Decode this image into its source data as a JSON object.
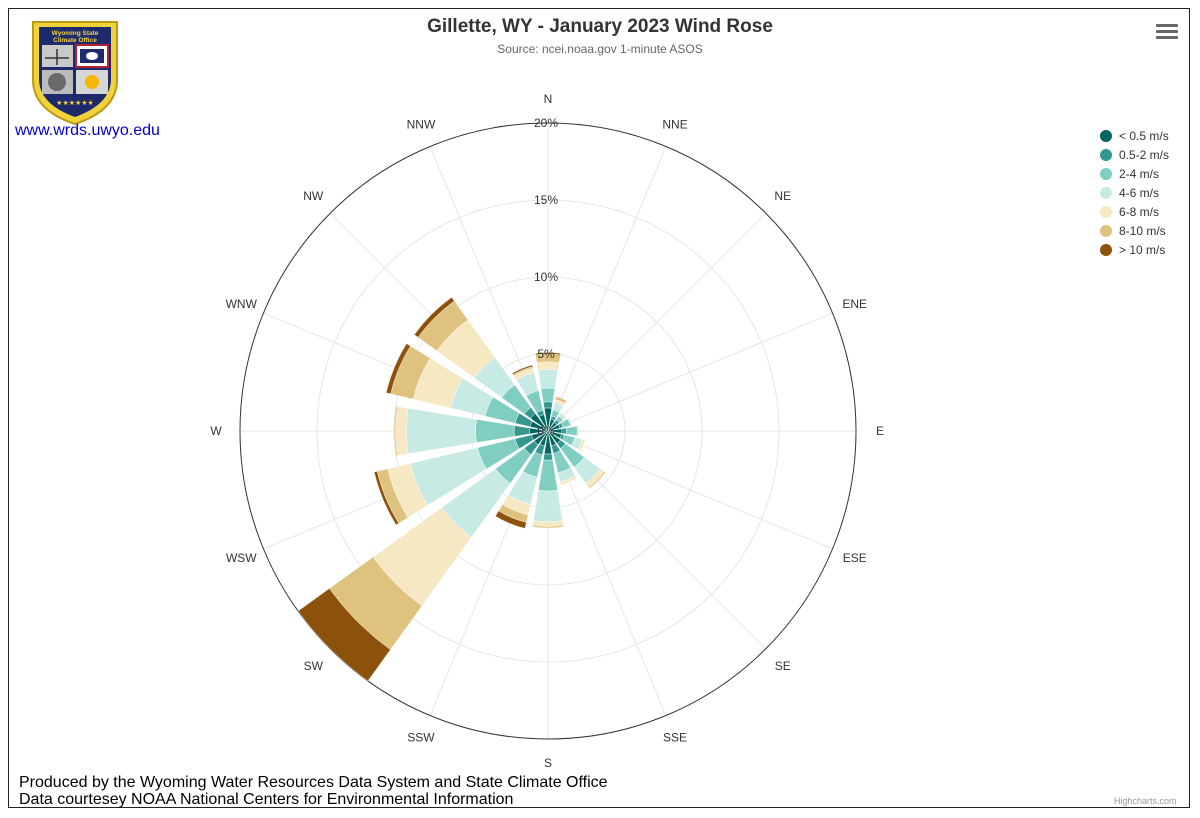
{
  "title": "Gillette, WY - January 2023 Wind Rose",
  "subtitle": "Source: ncei.noaa.gov 1-minute ASOS",
  "logo": {
    "top_text_1": "Wyoming State",
    "top_text_2": "Climate Office",
    "link_text": "www.wrds.uwyo.edu"
  },
  "credits": {
    "line1": "Produced by the Wyoming Water Resources Data System and State Climate Office",
    "line2": "Data courtesey NOAA National Centers for Environmental Information",
    "highcharts": "Highcharts.com"
  },
  "chart_data": {
    "type": "windrose",
    "stacking": "stacked",
    "categories": [
      "N",
      "NNE",
      "NE",
      "ENE",
      "E",
      "ESE",
      "SE",
      "SSE",
      "S",
      "SSW",
      "SW",
      "WSW",
      "W",
      "WNW",
      "NW",
      "NNW"
    ],
    "radial_axis": {
      "min": 0,
      "max": 20,
      "tick_labels": [
        "0%",
        "5%",
        "10%",
        "15%",
        "20%"
      ]
    },
    "legend_position": "right",
    "series": [
      {
        "name": "< 0.5 m/s",
        "color": "#01665e",
        "values": [
          1.5,
          0.8,
          0.7,
          0.8,
          0.9,
          0.9,
          1.0,
          1.0,
          1.5,
          1.0,
          1.1,
          1.1,
          1.2,
          1.2,
          1.4,
          1.1
        ]
      },
      {
        "name": "0.5-2 m/s",
        "color": "#35978f",
        "values": [
          0.4,
          0.2,
          0.2,
          0.2,
          0.3,
          0.2,
          0.4,
          0.5,
          0.4,
          0.6,
          0.8,
          1.1,
          1.0,
          1.0,
          0.5,
          0.3
        ]
      },
      {
        "name": "2-4 m/s",
        "color": "#80cdc1",
        "values": [
          0.9,
          0.4,
          0.3,
          0.5,
          0.7,
          0.7,
          1.5,
          1.3,
          2.0,
          1.5,
          2.3,
          2.5,
          2.5,
          2.0,
          1.8,
          1.3
        ]
      },
      {
        "name": "4-6 m/s",
        "color": "#c7eae5",
        "values": [
          1.2,
          0.5,
          0.2,
          0.1,
          0.1,
          0.5,
          1.3,
          0.6,
          2.0,
          1.8,
          4.3,
          4.5,
          4.5,
          2.3,
          2.2,
          1.2
        ]
      },
      {
        "name": "6-8 m/s",
        "color": "#f6e8c3",
        "values": [
          0.5,
          0.2,
          0.1,
          0,
          0,
          0.2,
          0.3,
          0.2,
          0.3,
          0.7,
          5.5,
          1.5,
          0.7,
          2.5,
          3.0,
          0.3
        ]
      },
      {
        "name": "8-10 m/s",
        "color": "#dfc27d",
        "values": [
          0.5,
          0.2,
          0,
          0,
          0,
          0,
          0.1,
          0,
          0.1,
          0.5,
          3.5,
          0.7,
          0.1,
          1.5,
          1.5,
          0.1
        ]
      },
      {
        "name": "> 10 m/s",
        "color": "#8c510a",
        "values": [
          0.1,
          0,
          0,
          0,
          0,
          0,
          0,
          0,
          0,
          0.4,
          2.5,
          0.2,
          0,
          0.3,
          0.3,
          0.1
        ]
      }
    ]
  }
}
